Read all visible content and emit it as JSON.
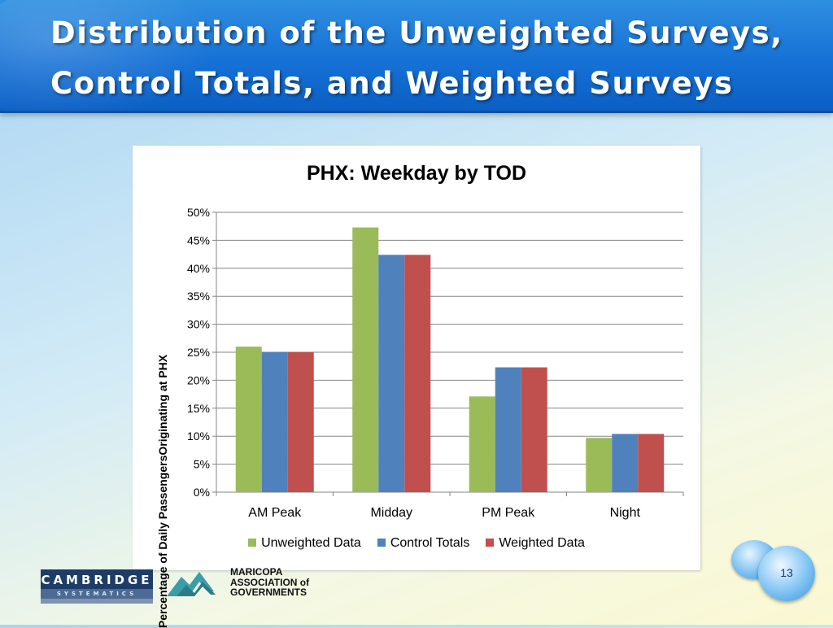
{
  "slide": {
    "title_line1": "Distribution of the Unweighted Surveys,",
    "title_line2": "Control Totals, and Weighted Surveys",
    "page_number": "13"
  },
  "logos": {
    "cambridge_top": "CAMBRIDGE",
    "cambridge_bottom": "SYSTEMATICS",
    "mag_line1": "MARICOPA",
    "mag_line2": "ASSOCIATION of",
    "mag_line3": "GOVERNMENTS"
  },
  "colors": {
    "unweighted": "#9bbb59",
    "control": "#4f81bd",
    "weighted": "#c0504d",
    "title_bar": "#1671d6"
  },
  "chart_data": {
    "type": "bar",
    "title": "PHX: Weekday by TOD",
    "ylabel": "Percentage of Daily PassengersOriginating at PHX",
    "xlabel": "",
    "categories": [
      "AM Peak",
      "Midday",
      "PM Peak",
      "Night"
    ],
    "series": [
      {
        "name": "Unweighted Data",
        "values": [
          26.0,
          47.3,
          17.1,
          9.7
        ]
      },
      {
        "name": "Control Totals",
        "values": [
          25.0,
          42.4,
          22.3,
          10.4
        ]
      },
      {
        "name": "Weighted Data",
        "values": [
          25.0,
          42.4,
          22.3,
          10.4
        ]
      }
    ],
    "ylim": [
      0,
      50
    ],
    "yticks": [
      "0%",
      "5%",
      "10%",
      "15%",
      "20%",
      "25%",
      "30%",
      "35%",
      "40%",
      "45%",
      "50%"
    ],
    "grid": true,
    "legend_position": "bottom"
  }
}
